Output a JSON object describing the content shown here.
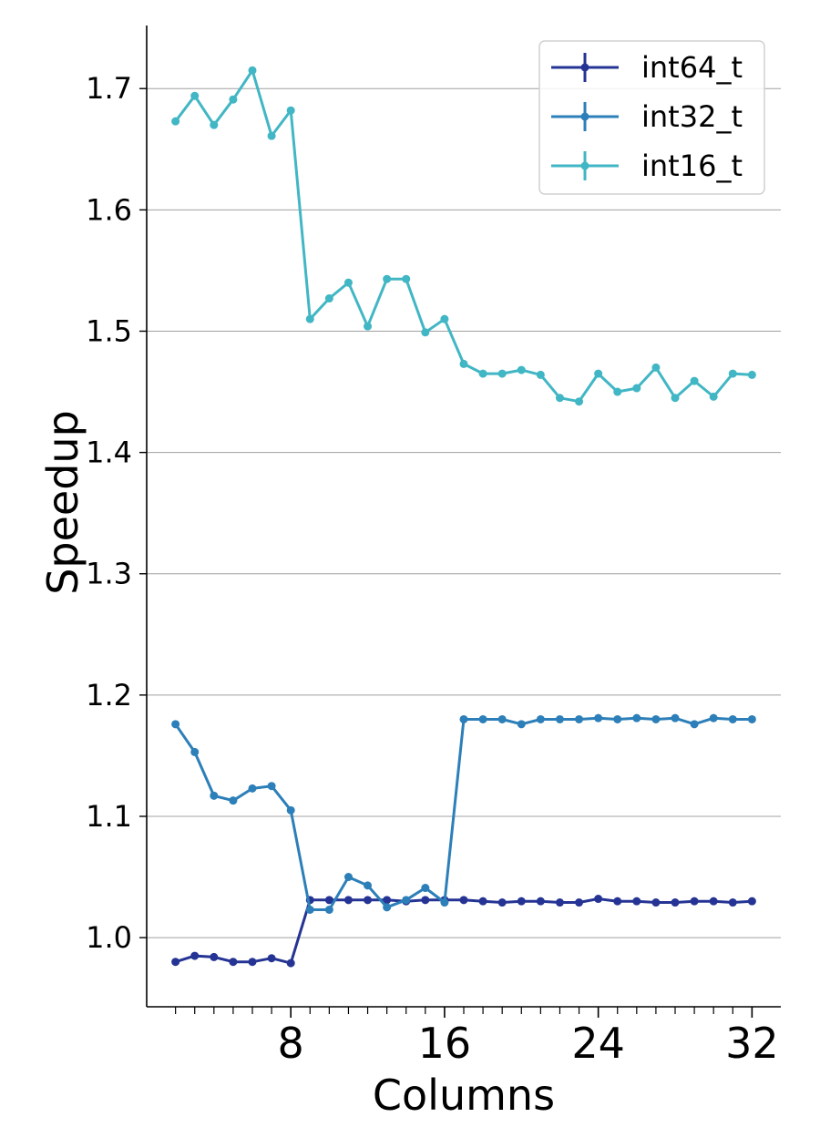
{
  "chart_data": {
    "type": "line",
    "title": "",
    "xlabel": "Columns",
    "ylabel": "Speedup",
    "x": [
      2,
      3,
      4,
      5,
      6,
      7,
      8,
      9,
      10,
      11,
      12,
      13,
      14,
      15,
      16,
      17,
      18,
      19,
      20,
      21,
      22,
      23,
      24,
      25,
      26,
      27,
      28,
      29,
      30,
      31,
      32
    ],
    "xticks": [
      8,
      16,
      24,
      32
    ],
    "xlim": [
      0.5,
      33.5
    ],
    "yticks": [
      1.0,
      1.1,
      1.2,
      1.3,
      1.4,
      1.5,
      1.6,
      1.7
    ],
    "ytick_labels": [
      "1.0",
      "1.1",
      "1.2",
      "1.3",
      "1.4",
      "1.5",
      "1.6",
      "1.7"
    ],
    "ylim": [
      0.943,
      1.752
    ],
    "grid": "horizontal",
    "legend_position": "top-right",
    "series": [
      {
        "name": "int64_t",
        "color": "#253494",
        "values": [
          0.98,
          0.985,
          0.984,
          0.98,
          0.98,
          0.983,
          0.979,
          1.031,
          1.031,
          1.031,
          1.031,
          1.031,
          1.03,
          1.031,
          1.031,
          1.031,
          1.03,
          1.029,
          1.03,
          1.03,
          1.029,
          1.029,
          1.032,
          1.03,
          1.03,
          1.029,
          1.029,
          1.03,
          1.03,
          1.029,
          1.03
        ]
      },
      {
        "name": "int32_t",
        "color": "#2c7fb8",
        "values": [
          1.176,
          1.153,
          1.117,
          1.113,
          1.123,
          1.125,
          1.105,
          1.023,
          1.023,
          1.05,
          1.043,
          1.025,
          1.031,
          1.041,
          1.029,
          1.18,
          1.18,
          1.18,
          1.176,
          1.18,
          1.18,
          1.18,
          1.181,
          1.18,
          1.181,
          1.18,
          1.181,
          1.176,
          1.181,
          1.18,
          1.18
        ]
      },
      {
        "name": "int16_t",
        "color": "#41b6c4",
        "values": [
          1.673,
          1.694,
          1.67,
          1.691,
          1.715,
          1.661,
          1.682,
          1.51,
          1.527,
          1.54,
          1.504,
          1.543,
          1.543,
          1.499,
          1.51,
          1.473,
          1.465,
          1.465,
          1.468,
          1.464,
          1.445,
          1.442,
          1.465,
          1.45,
          1.453,
          1.47,
          1.445,
          1.459,
          1.446,
          1.465,
          1.464
        ]
      }
    ]
  }
}
